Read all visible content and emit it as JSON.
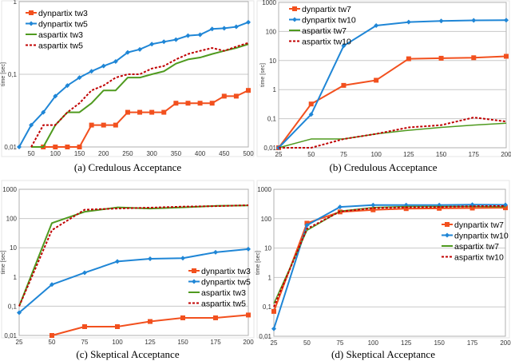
{
  "colors": {
    "dyn_low": "#f2501e",
    "dyn_high": "#1f86d6",
    "asp_low": "#4f9a1f",
    "asp_high": "#c00000"
  },
  "chart_data": [
    {
      "id": "a",
      "type": "line",
      "caption": "(a) Credulous Acceptance",
      "ylabel": "time [sec]",
      "yscale": "log",
      "ylim": [
        0.01,
        1
      ],
      "yticks": [
        "0,01",
        "0,1",
        "1"
      ],
      "xlim": [
        25,
        500
      ],
      "xticks": [
        50,
        100,
        150,
        200,
        250,
        300,
        350,
        400,
        450,
        500
      ],
      "legend": "top-left",
      "grid": true,
      "series": [
        {
          "name": "dynpartix tw3",
          "style": "dyn_low",
          "x": [
            75,
            100,
            125,
            150,
            175,
            200,
            225,
            250,
            275,
            300,
            325,
            350,
            375,
            400,
            425,
            450,
            475,
            500
          ],
          "y": [
            0.01,
            0.01,
            0.01,
            0.01,
            0.02,
            0.02,
            0.02,
            0.03,
            0.03,
            0.03,
            0.03,
            0.04,
            0.04,
            0.04,
            0.04,
            0.05,
            0.05,
            0.06
          ]
        },
        {
          "name": "dynpartix tw5",
          "style": "dyn_high",
          "x": [
            25,
            50,
            75,
            100,
            125,
            150,
            175,
            200,
            225,
            250,
            275,
            300,
            325,
            350,
            375,
            400,
            425,
            450,
            475,
            500
          ],
          "y": [
            0.01,
            0.02,
            0.03,
            0.05,
            0.07,
            0.09,
            0.11,
            0.13,
            0.15,
            0.2,
            0.22,
            0.26,
            0.28,
            0.3,
            0.34,
            0.35,
            0.42,
            0.43,
            0.45,
            0.52
          ]
        },
        {
          "name": "aspartix tw3",
          "style": "asp_low",
          "x": [
            50,
            75,
            100,
            125,
            150,
            175,
            200,
            225,
            250,
            275,
            300,
            325,
            350,
            375,
            400,
            425,
            450,
            475,
            500
          ],
          "y": [
            0.01,
            0.01,
            0.02,
            0.03,
            0.03,
            0.04,
            0.06,
            0.06,
            0.09,
            0.09,
            0.1,
            0.11,
            0.14,
            0.16,
            0.17,
            0.19,
            0.21,
            0.23,
            0.26
          ]
        },
        {
          "name": "aspartix tw5",
          "style": "asp_high",
          "x": [
            50,
            75,
            100,
            125,
            150,
            175,
            200,
            225,
            250,
            275,
            300,
            325,
            350,
            375,
            400,
            425,
            450,
            475,
            500
          ],
          "y": [
            0.01,
            0.02,
            0.02,
            0.03,
            0.04,
            0.06,
            0.07,
            0.09,
            0.1,
            0.1,
            0.12,
            0.13,
            0.16,
            0.19,
            0.21,
            0.23,
            0.21,
            0.24,
            0.27
          ]
        }
      ]
    },
    {
      "id": "b",
      "type": "line",
      "caption": "(b) Credulous Acceptance",
      "ylabel": "time [sec]",
      "yscale": "log",
      "ylim": [
        0.01,
        1000
      ],
      "yticks": [
        "0,01",
        "0,1",
        "1",
        "10",
        "100",
        "1000"
      ],
      "xlim": [
        25,
        200
      ],
      "xticks": [
        25,
        50,
        75,
        100,
        125,
        150,
        175,
        200
      ],
      "legend": "top-left",
      "grid": true,
      "series": [
        {
          "name": "dynpartix tw7",
          "style": "dyn_low",
          "x": [
            25,
            50,
            75,
            100,
            125,
            150,
            175,
            200
          ],
          "y": [
            0.01,
            0.32,
            1.4,
            2.1,
            11.5,
            12,
            12.5,
            14
          ]
        },
        {
          "name": "dynpartix tw10",
          "style": "dyn_high",
          "x": [
            25,
            50,
            75,
            100,
            125,
            150,
            175,
            200
          ],
          "y": [
            0.007,
            0.14,
            32,
            160,
            210,
            230,
            240,
            245
          ]
        },
        {
          "name": "aspartix tw7",
          "style": "asp_low",
          "x": [
            25,
            50,
            75,
            100,
            125,
            150,
            175,
            200
          ],
          "y": [
            0.01,
            0.02,
            0.02,
            0.03,
            0.04,
            0.05,
            0.06,
            0.07
          ]
        },
        {
          "name": "aspartix tw10",
          "style": "asp_high",
          "x": [
            25,
            50,
            75,
            100,
            125,
            150,
            175,
            200
          ],
          "y": [
            0.01,
            0.01,
            0.02,
            0.03,
            0.05,
            0.06,
            0.11,
            0.08
          ]
        }
      ]
    },
    {
      "id": "c",
      "type": "line",
      "caption": "(c) Skeptical Acceptance",
      "ylabel": "time [sec]",
      "yscale": "log",
      "ylim": [
        0.01,
        1000
      ],
      "yticks": [
        "0,01",
        "0,1",
        "1",
        "10",
        "100",
        "1000"
      ],
      "xlim": [
        25,
        200
      ],
      "xticks": [
        25,
        50,
        75,
        100,
        125,
        150,
        175,
        200
      ],
      "legend": "right",
      "grid": true,
      "series": [
        {
          "name": "dynpartix tw3",
          "style": "dyn_low",
          "x": [
            50,
            75,
            100,
            125,
            150,
            175,
            200
          ],
          "y": [
            0.01,
            0.02,
            0.02,
            0.03,
            0.04,
            0.04,
            0.05
          ]
        },
        {
          "name": "dynpartix tw5",
          "style": "dyn_high",
          "x": [
            25,
            50,
            75,
            100,
            125,
            150,
            175,
            200
          ],
          "y": [
            0.06,
            0.55,
            1.4,
            3.4,
            4.2,
            4.4,
            7,
            9
          ]
        },
        {
          "name": "aspartix tw3",
          "style": "asp_low",
          "x": [
            25,
            50,
            75,
            100,
            125,
            150,
            175,
            200
          ],
          "y": [
            0.1,
            70,
            170,
            240,
            220,
            240,
            270,
            280
          ]
        },
        {
          "name": "aspartix tw5",
          "style": "asp_high",
          "x": [
            25,
            50,
            75,
            100,
            125,
            150,
            175,
            200
          ],
          "y": [
            0.1,
            40,
            200,
            220,
            235,
            255,
            265,
            285
          ]
        }
      ]
    },
    {
      "id": "d",
      "type": "line",
      "caption": "(d) Skeptical Acceptance",
      "ylabel": "time [sec]",
      "yscale": "log",
      "ylim": [
        0.01,
        1000
      ],
      "yticks": [
        "0,01",
        "0,1",
        "1",
        "10",
        "100",
        "1000"
      ],
      "xlim": [
        25,
        200
      ],
      "xticks": [
        25,
        50,
        75,
        100,
        125,
        150,
        175,
        200
      ],
      "legend": "right",
      "grid": true,
      "series": [
        {
          "name": "dynpartix tw7",
          "style": "dyn_low",
          "x": [
            25,
            50,
            75,
            100,
            125,
            150,
            175,
            200
          ],
          "y": [
            0.07,
            70,
            170,
            200,
            220,
            225,
            230,
            235
          ]
        },
        {
          "name": "dynpartix tw10",
          "style": "dyn_high",
          "x": [
            25,
            50,
            75,
            100,
            125,
            150,
            175,
            200
          ],
          "y": [
            0.018,
            60,
            250,
            290,
            290,
            290,
            300,
            295
          ]
        },
        {
          "name": "aspartix tw7",
          "style": "asp_low",
          "x": [
            25,
            50,
            75,
            100,
            125,
            150,
            175,
            200
          ],
          "y": [
            0.13,
            40,
            180,
            240,
            260,
            260,
            260,
            255
          ]
        },
        {
          "name": "aspartix tw10",
          "style": "asp_high",
          "x": [
            25,
            50,
            75,
            100,
            125,
            150,
            175,
            200
          ],
          "y": [
            0.1,
            45,
            175,
            230,
            245,
            250,
            265,
            270
          ]
        }
      ]
    }
  ]
}
